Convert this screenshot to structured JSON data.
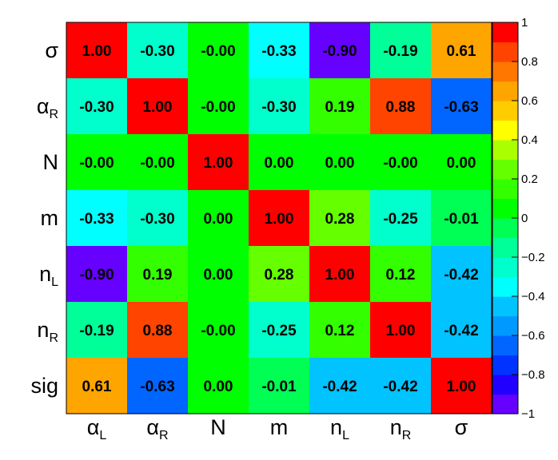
{
  "chart_data": {
    "type": "heatmap",
    "title": "",
    "x_labels": [
      {
        "base": "α",
        "sub": "L"
      },
      {
        "base": "α",
        "sub": "R"
      },
      {
        "base": "N",
        "sub": ""
      },
      {
        "base": "m",
        "sub": ""
      },
      {
        "base": "n",
        "sub": "L"
      },
      {
        "base": "n",
        "sub": "R"
      },
      {
        "base": "σ",
        "sub": ""
      }
    ],
    "y_labels_top_to_bottom": [
      {
        "base": "σ",
        "sub": ""
      },
      {
        "base": "α",
        "sub": "R"
      },
      {
        "base": "N",
        "sub": ""
      },
      {
        "base": "m",
        "sub": ""
      },
      {
        "base": "n",
        "sub": "L"
      },
      {
        "base": "n",
        "sub": "R"
      },
      {
        "base": "sig",
        "sub": ""
      }
    ],
    "values_top_to_bottom": [
      [
        1.0,
        -0.3,
        -0.0,
        -0.33,
        -0.9,
        -0.19,
        0.61
      ],
      [
        -0.3,
        1.0,
        -0.0,
        -0.3,
        0.19,
        0.88,
        -0.63
      ],
      [
        -0.0,
        -0.0,
        1.0,
        0.0,
        0.0,
        -0.0,
        0.0
      ],
      [
        -0.33,
        -0.3,
        0.0,
        1.0,
        0.28,
        -0.25,
        -0.01
      ],
      [
        -0.9,
        0.19,
        0.0,
        0.28,
        1.0,
        0.12,
        -0.42
      ],
      [
        -0.19,
        0.88,
        -0.0,
        -0.25,
        0.12,
        1.0,
        -0.42
      ],
      [
        0.61,
        -0.63,
        0.0,
        -0.01,
        -0.42,
        -0.42,
        1.0
      ]
    ],
    "value_labels_top_to_bottom": [
      [
        "1.00",
        "-0.30",
        "-0.00",
        "-0.33",
        "-0.90",
        "-0.19",
        "0.61"
      ],
      [
        "-0.30",
        "1.00",
        "-0.00",
        "-0.30",
        "0.19",
        "0.88",
        "-0.63"
      ],
      [
        "-0.00",
        "-0.00",
        "1.00",
        "0.00",
        "0.00",
        "-0.00",
        "0.00"
      ],
      [
        "-0.33",
        "-0.30",
        "0.00",
        "1.00",
        "0.28",
        "-0.25",
        "-0.01"
      ],
      [
        "-0.90",
        "0.19",
        "0.00",
        "0.28",
        "1.00",
        "0.12",
        "-0.42"
      ],
      [
        "-0.19",
        "0.88",
        "-0.00",
        "-0.25",
        "0.12",
        "1.00",
        "-0.42"
      ],
      [
        "0.61",
        "-0.63",
        "0.00",
        "-0.01",
        "-0.42",
        "-0.42",
        "1.00"
      ]
    ],
    "zlim": [
      -1,
      1
    ],
    "colorbar": {
      "ticks": [
        1,
        0.8,
        0.6,
        0.4,
        0.2,
        0,
        -0.2,
        -0.4,
        -0.6,
        -0.8,
        -1
      ],
      "tick_labels": [
        "1",
        "0.8",
        "0.6",
        "0.4",
        "0.2",
        "0",
        "−0.2",
        "−0.4",
        "−0.6",
        "−0.8",
        "−1"
      ]
    },
    "palette_low_to_high": [
      "#6600ff",
      "#2200ff",
      "#0033ff",
      "#0066ff",
      "#0099ff",
      "#00c3ff",
      "#00ffff",
      "#00ffcc",
      "#00ff99",
      "#00ff55",
      "#00ff00",
      "#33ff00",
      "#66ff00",
      "#aaff00",
      "#ffff00",
      "#ffcc00",
      "#ffa500",
      "#ff7700",
      "#ff4400",
      "#ff0000"
    ]
  }
}
